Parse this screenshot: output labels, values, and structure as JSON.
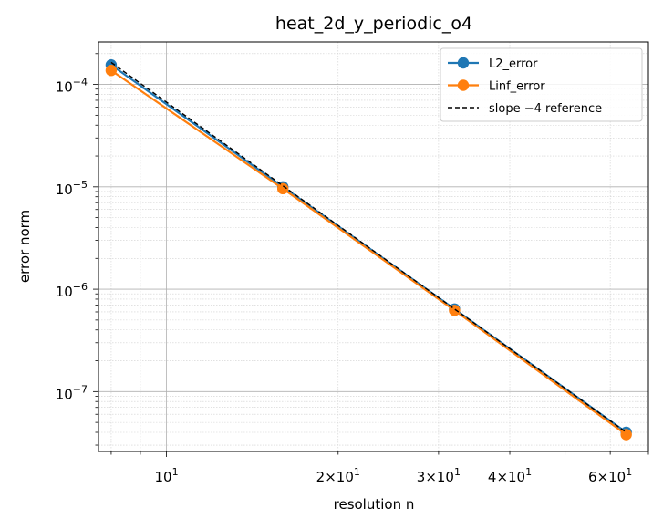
{
  "chart_data": {
    "type": "line",
    "title": "heat_2d_y_periodic_o4",
    "xlabel": "resolution n",
    "ylabel": "error norm",
    "xscale": "log",
    "yscale": "log",
    "xlim": [
      7.6,
      70
    ],
    "ylim": [
      2.6e-08,
      0.00026
    ],
    "grid": true,
    "legend_position": "upper right",
    "x": [
      8,
      16,
      32,
      64
    ],
    "series": [
      {
        "name": "L2_error",
        "values": [
          0.000155,
          1e-05,
          6.4e-07,
          4e-08
        ],
        "color": "#1f77b4",
        "style": "solid",
        "marker": "circle"
      },
      {
        "name": "Linf_error",
        "values": [
          0.000137,
          9.6e-06,
          6.2e-07,
          3.8e-08
        ],
        "color": "#ff7f0e",
        "style": "solid",
        "marker": "circle"
      },
      {
        "name": "slope −4 reference",
        "values": [
          0.000164,
          1.025e-05,
          6.4e-07,
          4e-08
        ],
        "color": "#000000",
        "style": "dashed",
        "marker": "none"
      }
    ],
    "x_major_ticks": [
      {
        "value": 10,
        "base": "10",
        "exp": "1"
      },
      {
        "value": 20,
        "base": "2×10",
        "exp": "1"
      },
      {
        "value": 30,
        "base": "3×10",
        "exp": "1"
      },
      {
        "value": 40,
        "base": "4×10",
        "exp": "1"
      },
      {
        "value": 60,
        "base": "6×10",
        "exp": "1"
      }
    ],
    "y_major_ticks": [
      {
        "value": 0.0001,
        "base": "10",
        "exp": "−4"
      },
      {
        "value": 1e-05,
        "base": "10",
        "exp": "−5"
      },
      {
        "value": 1e-06,
        "base": "10",
        "exp": "−6"
      },
      {
        "value": 1e-07,
        "base": "10",
        "exp": "−7"
      }
    ]
  }
}
